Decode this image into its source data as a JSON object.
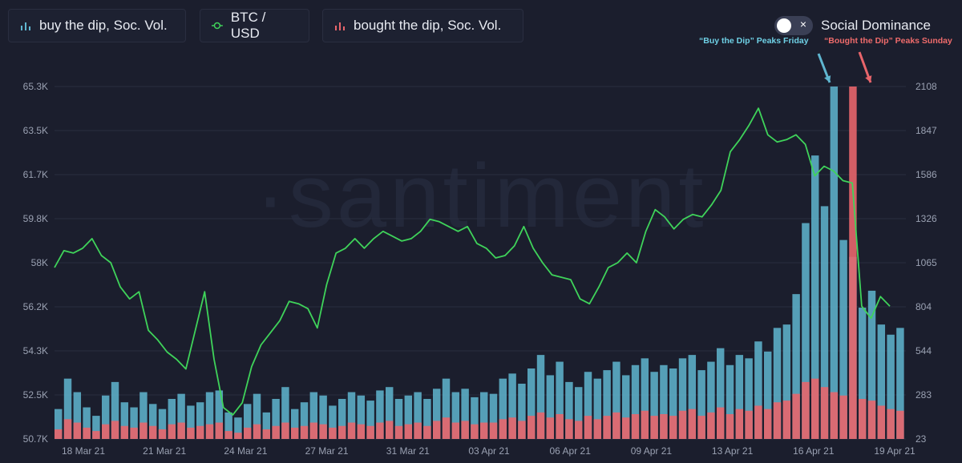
{
  "legend": {
    "buy": "buy the dip, Soc. Vol.",
    "btc": "BTC / USD",
    "bought": "bought the dip, Soc. Vol."
  },
  "toggle": {
    "label": "Social Dominance",
    "state": "on",
    "close_glyph": "×"
  },
  "annotations": {
    "buy": "“Buy the Dip” Peaks Friday",
    "bought": "“Bought the Dip” Peaks Sunday"
  },
  "watermark": "·santiment",
  "colors": {
    "background": "#1b1e2d",
    "btc": "#3fd35a",
    "buy": "#5fb6d0",
    "bought": "#e8656b",
    "grid": "#2a2e40",
    "axis_text": "#9aa1b2"
  },
  "chart_data": {
    "type": "line",
    "x_ticks": [
      "18 Mar 21",
      "21 Mar 21",
      "24 Mar 21",
      "27 Mar 21",
      "31 Mar 21",
      "03 Apr 21",
      "06 Apr 21",
      "09 Apr 21",
      "13 Apr 21",
      "16 Apr 21",
      "19 Apr 21"
    ],
    "y_left_ticks": [
      "65.3K",
      "63.5K",
      "61.7K",
      "59.8K",
      "58K",
      "56.2K",
      "54.3K",
      "52.5K",
      "50.7K"
    ],
    "y_right_ticks": [
      "2108",
      "1847",
      "1586",
      "1326",
      "1065",
      "804",
      "544",
      "283",
      "23"
    ],
    "y_left_range": [
      50700,
      65300
    ],
    "y_right_range": [
      23,
      2108
    ],
    "series": [
      {
        "name": "BTC / USD",
        "axis": "left",
        "values": [
          57800,
          58500,
          58400,
          58600,
          59000,
          58300,
          58000,
          57000,
          56500,
          56800,
          55200,
          54800,
          54300,
          54000,
          53600,
          55200,
          56800,
          54000,
          52000,
          51700,
          52200,
          53700,
          54600,
          55100,
          55600,
          56400,
          56300,
          56100,
          55300,
          57100,
          58400,
          58600,
          59000,
          58600,
          59000,
          59300,
          59100,
          58900,
          59000,
          59300,
          59800,
          59700,
          59500,
          59300,
          59500,
          58800,
          58600,
          58200,
          58300,
          58700,
          59500,
          58600,
          58000,
          57500,
          57400,
          57300,
          56500,
          56300,
          57000,
          57800,
          58000,
          58400,
          58000,
          59300,
          60200,
          59900,
          59400,
          59800,
          60000,
          59900,
          60400,
          61000,
          62600,
          63100,
          63700,
          64400,
          63300,
          63000,
          63100,
          63300,
          62900,
          61600,
          62000,
          61800,
          61400,
          61300,
          56200,
          55700,
          56600,
          56200
        ]
      },
      {
        "name": "buy the dip, Soc. Vol.",
        "axis": "right",
        "values": [
          200,
          380,
          300,
          210,
          160,
          280,
          360,
          240,
          210,
          300,
          230,
          200,
          260,
          290,
          220,
          240,
          300,
          310,
          180,
          150,
          230,
          290,
          180,
          260,
          330,
          200,
          240,
          300,
          280,
          220,
          260,
          300,
          280,
          250,
          310,
          330,
          260,
          280,
          300,
          260,
          320,
          380,
          300,
          320,
          270,
          300,
          290,
          380,
          410,
          350,
          440,
          520,
          400,
          480,
          360,
          330,
          420,
          380,
          430,
          480,
          400,
          460,
          500,
          420,
          460,
          440,
          500,
          520,
          430,
          480,
          560,
          460,
          520,
          500,
          600,
          540,
          680,
          700,
          880,
          1300,
          1700,
          1400,
          2108,
          1200,
          1100,
          800,
          900,
          700,
          640,
          680
        ]
      },
      {
        "name": "bought the dip, Soc. Vol.",
        "axis": "right",
        "values": [
          80,
          140,
          120,
          90,
          70,
          110,
          130,
          100,
          90,
          120,
          100,
          80,
          110,
          120,
          90,
          100,
          110,
          120,
          70,
          60,
          90,
          110,
          80,
          100,
          120,
          90,
          100,
          120,
          110,
          90,
          100,
          120,
          110,
          100,
          120,
          130,
          100,
          110,
          120,
          100,
          130,
          150,
          120,
          130,
          110,
          120,
          120,
          140,
          150,
          130,
          160,
          180,
          150,
          170,
          140,
          130,
          160,
          140,
          160,
          180,
          150,
          170,
          190,
          160,
          170,
          160,
          190,
          200,
          160,
          180,
          210,
          170,
          200,
          190,
          220,
          200,
          240,
          250,
          290,
          360,
          380,
          330,
          300,
          280,
          2108,
          260,
          250,
          220,
          200,
          190
        ]
      }
    ]
  }
}
